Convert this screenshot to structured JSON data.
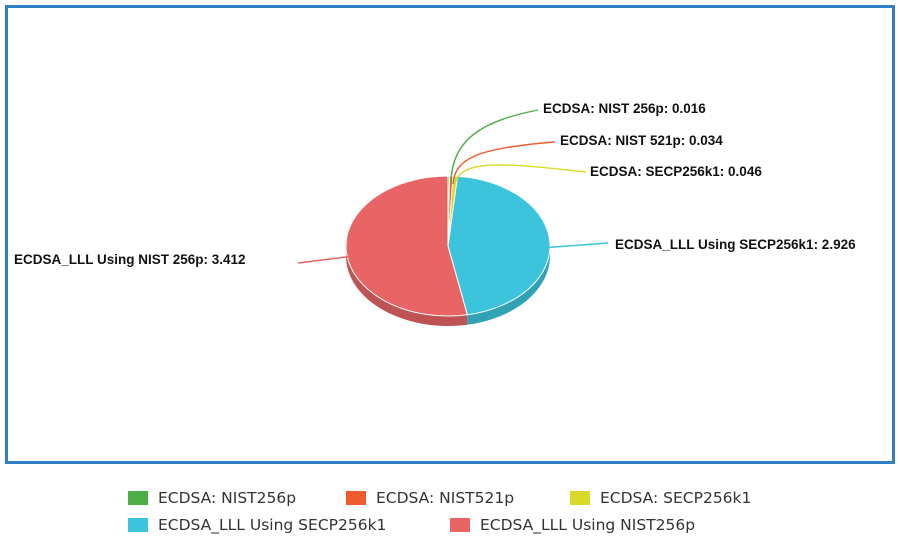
{
  "chart_data": {
    "type": "pie",
    "style": "3d",
    "slices": [
      {
        "label": "ECDSA: NIST256p",
        "callout": "ECDSA: NIST 256p: 0.016",
        "value": 0.016,
        "color": "#4cae45"
      },
      {
        "label": "ECDSA: NIST521p",
        "callout": "ECDSA: NIST 521p: 0.034",
        "value": 0.034,
        "color": "#ef5b2f"
      },
      {
        "label": "ECDSA: SECP256k1",
        "callout": "ECDSA: SECP256k1: 0.046",
        "value": 0.046,
        "color": "#d9d92a"
      },
      {
        "label": "ECDSA_LLL Using SECP256k1",
        "callout": "ECDSA_LLL Using SECP256k1: 2.926",
        "value": 2.926,
        "color": "#3cc4dd"
      },
      {
        "label": "ECDSA_LLL Using NIST256p",
        "callout": "ECDSA_LLL Using NIST 256p: 3.412",
        "value": 3.412,
        "color": "#e96565"
      }
    ],
    "legend_position": "bottom"
  }
}
